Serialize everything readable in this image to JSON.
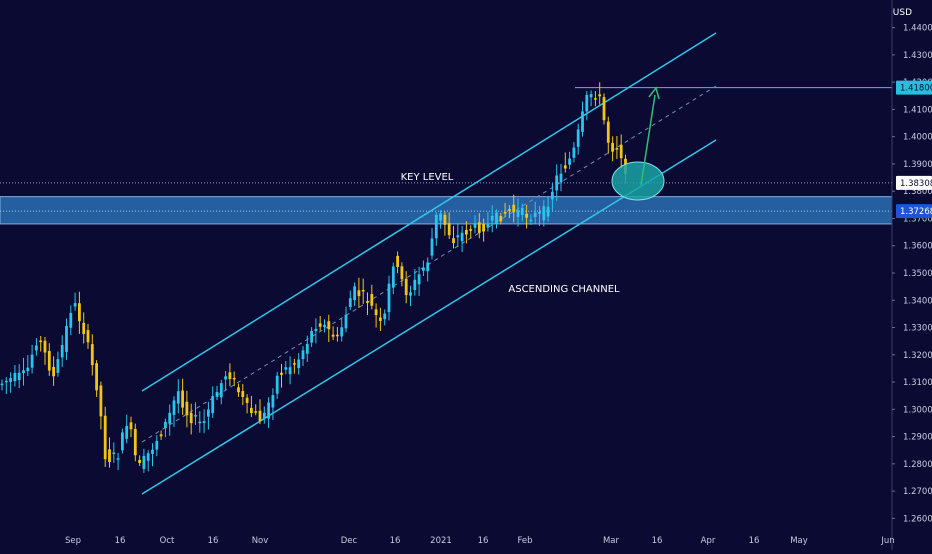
{
  "currency_label": "USD",
  "colors": {
    "background": "#0b0a33",
    "candle_up": "#29c5ec",
    "candle_down": "#f2c515",
    "channel": "#2ec7e8",
    "midline": "#6f8fb8",
    "key_zone_fill": "#2f7cc4",
    "marker_fill": "#1aa3a6",
    "arrow": "#2fbf79",
    "axis_text": "#c9cbe0",
    "price_tag_cyan": "#26c0dd",
    "price_tag_blue": "#1e55d6",
    "price_tag_white": "#ffffff"
  },
  "annotations": {
    "key_level": "KEY LEVEL",
    "ascending_channel": "ASCENDING CHANNEL"
  },
  "chart_data": {
    "type": "candlestick",
    "title": "",
    "ylim": [
      1.255,
      1.445
    ],
    "y_ticks": [
      "1.26000",
      "1.27000",
      "1.28000",
      "1.29000",
      "1.30000",
      "1.31000",
      "1.32000",
      "1.33000",
      "1.34000",
      "1.35000",
      "1.36000",
      "1.37000",
      "1.38000",
      "1.39000",
      "1.40000",
      "1.41000",
      "1.42000",
      "1.43000",
      "1.44000"
    ],
    "x_ticks": [
      "Sep",
      "16",
      "Oct",
      "16",
      "Nov",
      "Dec",
      "16",
      "2021",
      "16",
      "Feb",
      "Mar",
      "16",
      "Apr",
      "16",
      "May",
      "Jun"
    ],
    "price_tags": [
      {
        "label": "1.41800",
        "value": 1.418,
        "style": "cyan"
      },
      {
        "label": "1.38308",
        "value": 1.38308,
        "style": "white"
      },
      {
        "label": "1.37268",
        "value": 1.37268,
        "style": "blue"
      }
    ],
    "levels": {
      "resistance_line": 1.418,
      "current_price_dotted": 1.38308,
      "key_zone": [
        1.368,
        1.378
      ],
      "key_zone_mid": 1.37268
    },
    "channel": {
      "upper_start": [
        "Sep 22",
        1.304
      ],
      "upper_end": [
        "Apr 1",
        1.434
      ],
      "lower_start": [
        "Sep 22",
        1.267
      ],
      "lower_end": [
        "Apr 1",
        1.396
      ]
    },
    "candles_ohlc_approx": {
      "sep_start": 1.306,
      "sep_high": 1.348,
      "sep_low": 1.268,
      "oct_close": 1.294,
      "nov_close": 1.325,
      "dec_close": 1.355,
      "jan_close": 1.373,
      "feb_high": 1.424,
      "latest_close": 1.383
    }
  }
}
